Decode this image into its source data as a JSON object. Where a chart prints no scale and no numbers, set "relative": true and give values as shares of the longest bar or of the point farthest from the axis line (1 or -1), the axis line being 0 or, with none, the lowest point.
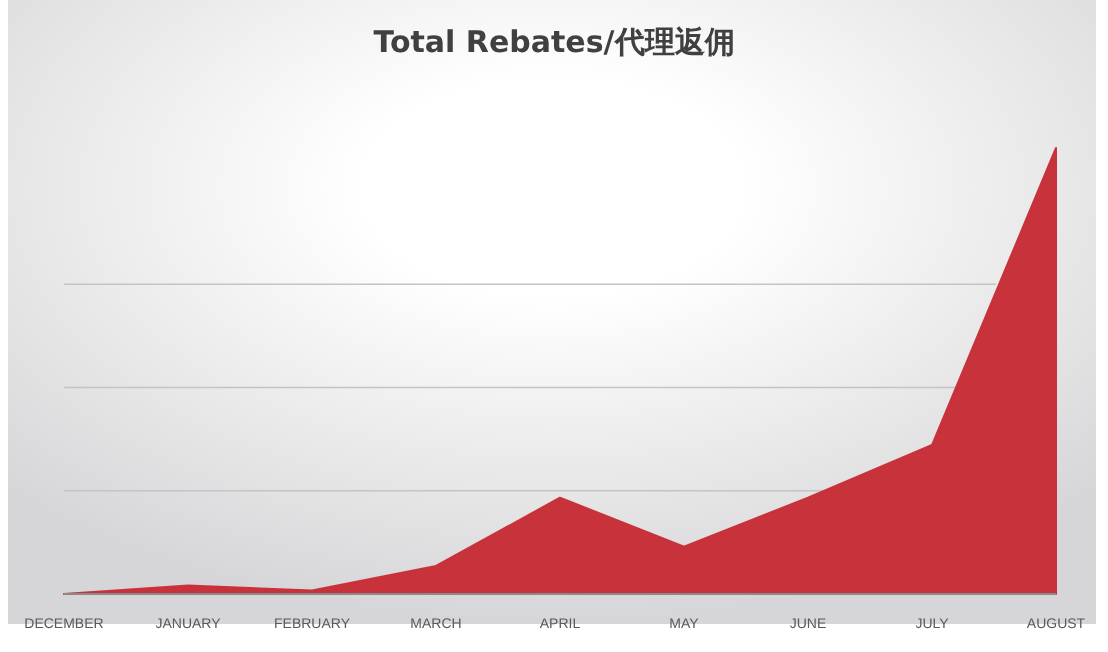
{
  "chart_data": {
    "type": "area",
    "title": "Total Rebates/代理返佣",
    "relative": true,
    "grid": "y",
    "color": "#c8323a",
    "categories": [
      "DECEMBER",
      "JANUARY",
      "FEBRUARY",
      "MARCH",
      "APRIL",
      "MAY",
      "JUNE",
      "JULY",
      "AUGUST"
    ],
    "values": [
      0,
      0.019,
      0.008,
      0.063,
      0.216,
      0.106,
      0.216,
      0.334,
      1
    ]
  }
}
